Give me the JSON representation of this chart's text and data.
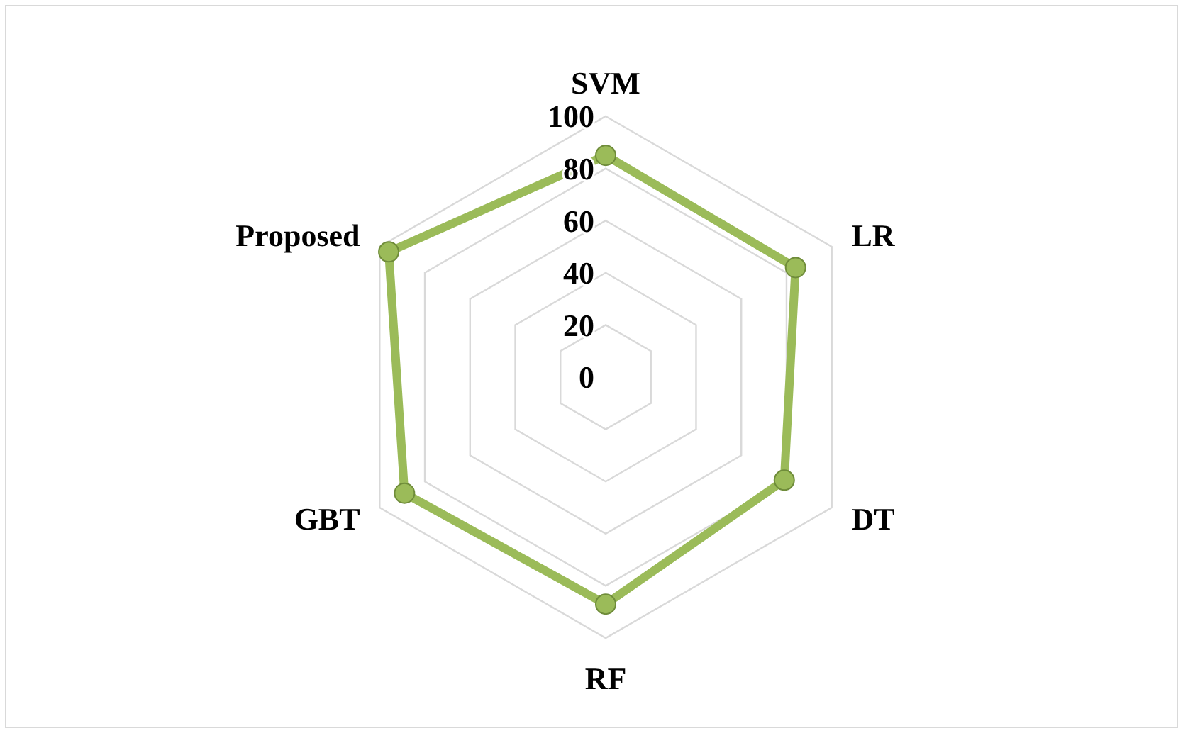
{
  "chart_data": {
    "type": "radar",
    "categories": [
      "SVM",
      "LR",
      "DT",
      "RF",
      "GBT",
      "Proposed"
    ],
    "series": [
      {
        "color": "#9bbb59",
        "values": [
          85,
          84,
          79,
          87,
          89,
          96
        ]
      }
    ],
    "ylim": [
      0,
      100
    ],
    "yticks": [
      0,
      20,
      40,
      60,
      80,
      100
    ],
    "grid": true,
    "marker": "circle"
  }
}
